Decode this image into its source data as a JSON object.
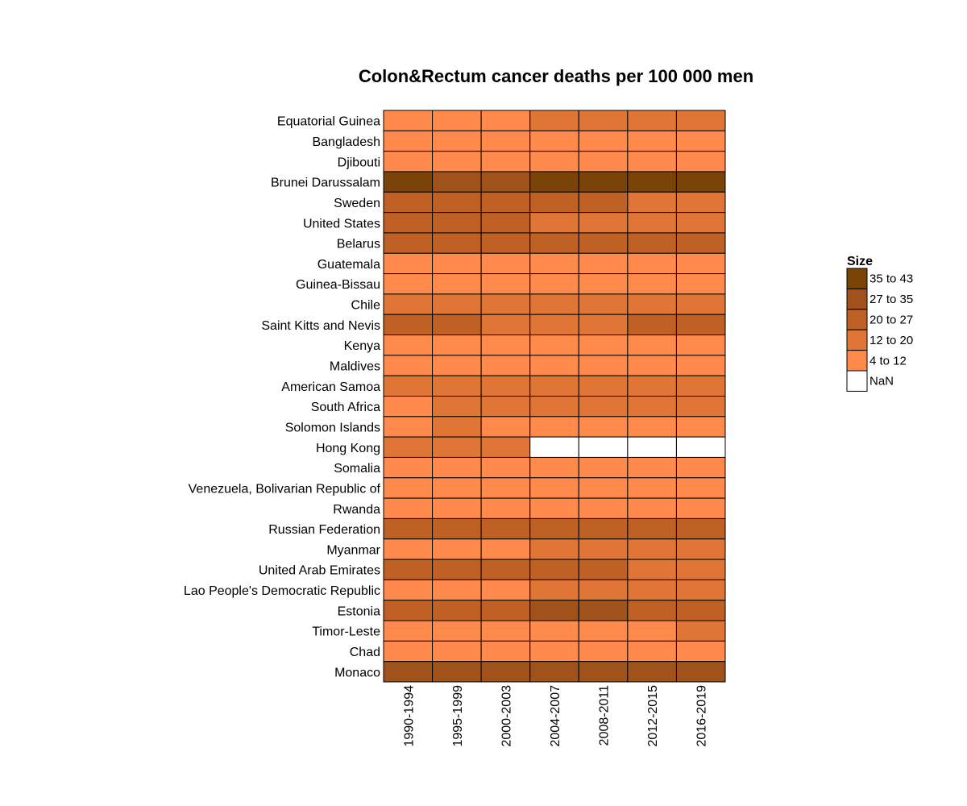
{
  "chart_data": {
    "type": "heatmap",
    "title": "Colon&Rectum cancer deaths per 100 000 men",
    "x_categories": [
      "1990-1994",
      "1995-1999",
      "2000-2003",
      "2004-2007",
      "2008-2011",
      "2012-2015",
      "2016-2019"
    ],
    "y_categories": [
      "Equatorial Guinea",
      "Bangladesh",
      "Djibouti",
      "Brunei Darussalam",
      "Sweden",
      "United States",
      "Belarus",
      "Guatemala",
      "Guinea-Bissau",
      "Chile",
      "Saint Kitts and Nevis",
      "Kenya",
      "Maldives",
      "American Samoa",
      "South Africa",
      "Solomon Islands",
      "Hong Kong",
      "Somalia",
      "Venezuela, Bolivarian Republic of",
      "Rwanda",
      "Russian Federation",
      "Myanmar",
      "United Arab Emirates",
      "Lao People's Democratic Republic",
      "Estonia",
      "Timor-Leste",
      "Chad",
      "Monaco"
    ],
    "bins": [
      "4 to 12",
      "12 to 20",
      "20 to 27",
      "27 to 35",
      "35 to 43",
      "NaN"
    ],
    "values": [
      [
        "4 to 12",
        "4 to 12",
        "4 to 12",
        "12 to 20",
        "12 to 20",
        "12 to 20",
        "12 to 20"
      ],
      [
        "4 to 12",
        "4 to 12",
        "4 to 12",
        "4 to 12",
        "4 to 12",
        "4 to 12",
        "4 to 12"
      ],
      [
        "4 to 12",
        "4 to 12",
        "4 to 12",
        "4 to 12",
        "4 to 12",
        "4 to 12",
        "4 to 12"
      ],
      [
        "35 to 43",
        "27 to 35",
        "27 to 35",
        "35 to 43",
        "35 to 43",
        "35 to 43",
        "35 to 43"
      ],
      [
        "20 to 27",
        "20 to 27",
        "20 to 27",
        "20 to 27",
        "20 to 27",
        "12 to 20",
        "12 to 20"
      ],
      [
        "20 to 27",
        "20 to 27",
        "20 to 27",
        "12 to 20",
        "12 to 20",
        "12 to 20",
        "12 to 20"
      ],
      [
        "20 to 27",
        "20 to 27",
        "20 to 27",
        "20 to 27",
        "20 to 27",
        "20 to 27",
        "20 to 27"
      ],
      [
        "4 to 12",
        "4 to 12",
        "4 to 12",
        "4 to 12",
        "4 to 12",
        "4 to 12",
        "4 to 12"
      ],
      [
        "4 to 12",
        "4 to 12",
        "4 to 12",
        "4 to 12",
        "4 to 12",
        "4 to 12",
        "4 to 12"
      ],
      [
        "12 to 20",
        "12 to 20",
        "12 to 20",
        "12 to 20",
        "12 to 20",
        "12 to 20",
        "12 to 20"
      ],
      [
        "20 to 27",
        "20 to 27",
        "12 to 20",
        "12 to 20",
        "12 to 20",
        "20 to 27",
        "20 to 27"
      ],
      [
        "4 to 12",
        "4 to 12",
        "4 to 12",
        "4 to 12",
        "4 to 12",
        "4 to 12",
        "4 to 12"
      ],
      [
        "4 to 12",
        "4 to 12",
        "4 to 12",
        "4 to 12",
        "4 to 12",
        "4 to 12",
        "4 to 12"
      ],
      [
        "12 to 20",
        "12 to 20",
        "12 to 20",
        "12 to 20",
        "12 to 20",
        "12 to 20",
        "12 to 20"
      ],
      [
        "4 to 12",
        "12 to 20",
        "12 to 20",
        "12 to 20",
        "12 to 20",
        "12 to 20",
        "12 to 20"
      ],
      [
        "4 to 12",
        "12 to 20",
        "4 to 12",
        "4 to 12",
        "4 to 12",
        "4 to 12",
        "4 to 12"
      ],
      [
        "12 to 20",
        "12 to 20",
        "12 to 20",
        "NaN",
        "NaN",
        "NaN",
        "NaN"
      ],
      [
        "4 to 12",
        "4 to 12",
        "4 to 12",
        "4 to 12",
        "4 to 12",
        "4 to 12",
        "4 to 12"
      ],
      [
        "4 to 12",
        "4 to 12",
        "4 to 12",
        "4 to 12",
        "4 to 12",
        "4 to 12",
        "4 to 12"
      ],
      [
        "4 to 12",
        "4 to 12",
        "4 to 12",
        "4 to 12",
        "4 to 12",
        "4 to 12",
        "4 to 12"
      ],
      [
        "20 to 27",
        "20 to 27",
        "20 to 27",
        "20 to 27",
        "20 to 27",
        "20 to 27",
        "20 to 27"
      ],
      [
        "4 to 12",
        "4 to 12",
        "4 to 12",
        "12 to 20",
        "12 to 20",
        "12 to 20",
        "12 to 20"
      ],
      [
        "20 to 27",
        "20 to 27",
        "20 to 27",
        "20 to 27",
        "20 to 27",
        "12 to 20",
        "12 to 20"
      ],
      [
        "4 to 12",
        "4 to 12",
        "4 to 12",
        "12 to 20",
        "12 to 20",
        "12 to 20",
        "12 to 20"
      ],
      [
        "20 to 27",
        "20 to 27",
        "20 to 27",
        "27 to 35",
        "27 to 35",
        "20 to 27",
        "20 to 27"
      ],
      [
        "4 to 12",
        "4 to 12",
        "4 to 12",
        "4 to 12",
        "4 to 12",
        "4 to 12",
        "12 to 20"
      ],
      [
        "4 to 12",
        "4 to 12",
        "4 to 12",
        "4 to 12",
        "4 to 12",
        "4 to 12",
        "4 to 12"
      ],
      [
        "27 to 35",
        "27 to 35",
        "27 to 35",
        "27 to 35",
        "27 to 35",
        "27 to 35",
        "27 to 35"
      ]
    ],
    "colors": {
      "4 to 12": "#FF8A4C",
      "12 to 20": "#E07636",
      "20 to 27": "#BF6024",
      "27 to 35": "#A0521B",
      "35 to 43": "#7A4409",
      "NaN": "#FFFFFF"
    },
    "legend": {
      "title": "Size",
      "position": "right",
      "entries": [
        "35 to 43",
        "27 to 35",
        "20 to 27",
        "12 to 20",
        "4 to 12",
        "NaN"
      ]
    },
    "grid": false
  }
}
